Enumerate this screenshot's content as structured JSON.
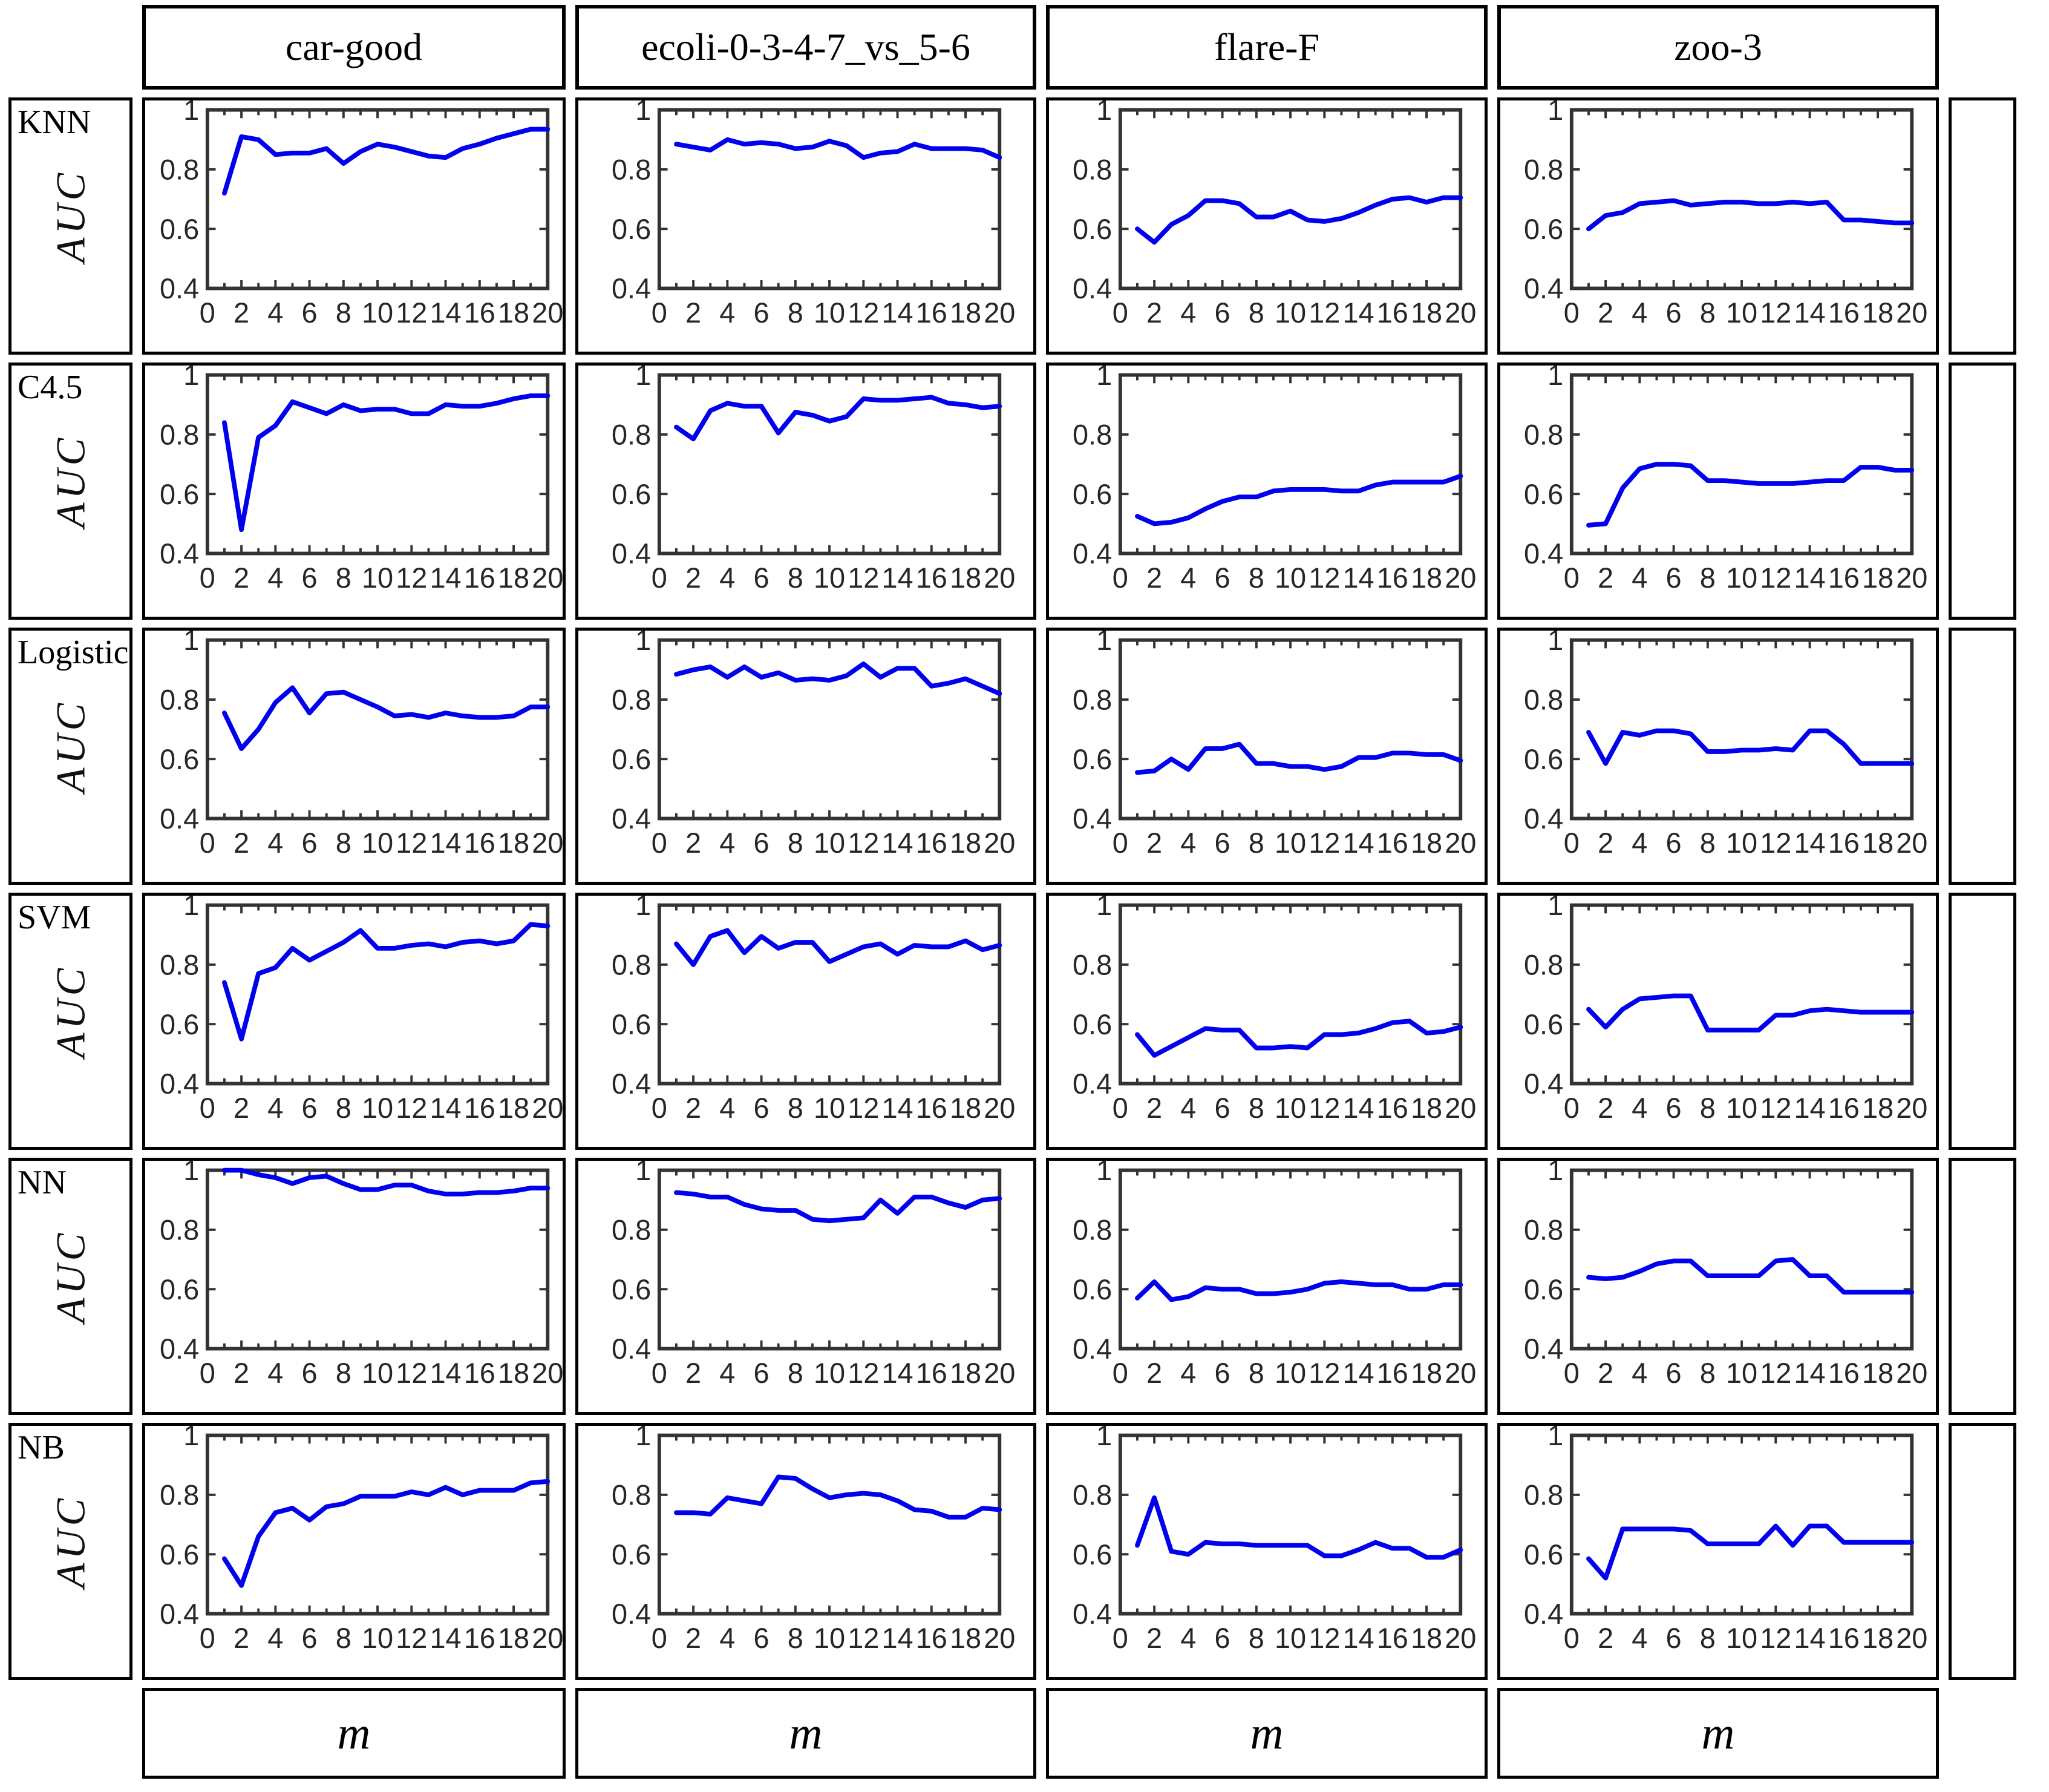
{
  "figure": {
    "ylabel": "AUC",
    "xlabel": "m",
    "row_labels": [
      "KNN",
      "C4.5",
      "Logistic",
      "SVM",
      "NN",
      "NB"
    ],
    "dataset_titles": [
      "car-good",
      "ecoli-0-3-4-7_vs_5-6",
      "flare-F",
      "zoo-3"
    ],
    "line_color": "#0000ee",
    "axis_color": "#333333",
    "tick_label_color": "#262626"
  },
  "chart_data": {
    "type": "line",
    "x": [
      1,
      2,
      3,
      4,
      5,
      6,
      7,
      8,
      9,
      10,
      11,
      12,
      13,
      14,
      15,
      16,
      17,
      18,
      19,
      20
    ],
    "xlim": [
      0,
      20
    ],
    "ylim": [
      0.4,
      1.0
    ],
    "xticks_labeled": [
      0,
      2,
      4,
      6,
      8,
      10,
      12,
      14,
      16,
      18,
      20
    ],
    "yticks_labeled": [
      0.4,
      0.6,
      0.8,
      1
    ],
    "grid": false,
    "legend": false,
    "series": [
      {
        "classifier": "KNN",
        "dataset": "car-good",
        "values": [
          0.72,
          0.91,
          0.9,
          0.85,
          0.855,
          0.855,
          0.87,
          0.82,
          0.86,
          0.885,
          0.875,
          0.86,
          0.845,
          0.84,
          0.87,
          0.885,
          0.905,
          0.92,
          0.935,
          0.935
        ]
      },
      {
        "classifier": "KNN",
        "dataset": "ecoli-0-3-4-7_vs_5-6",
        "values": [
          0.885,
          0.875,
          0.865,
          0.9,
          0.885,
          0.89,
          0.885,
          0.87,
          0.875,
          0.895,
          0.88,
          0.84,
          0.855,
          0.86,
          0.885,
          0.87,
          0.87,
          0.87,
          0.865,
          0.84
        ]
      },
      {
        "classifier": "KNN",
        "dataset": "flare-F",
        "values": [
          0.6,
          0.555,
          0.615,
          0.645,
          0.695,
          0.695,
          0.685,
          0.64,
          0.64,
          0.66,
          0.63,
          0.625,
          0.635,
          0.655,
          0.68,
          0.7,
          0.705,
          0.69,
          0.705,
          0.705
        ]
      },
      {
        "classifier": "KNN",
        "dataset": "zoo-3",
        "values": [
          0.6,
          0.645,
          0.655,
          0.685,
          0.69,
          0.695,
          0.68,
          0.685,
          0.69,
          0.69,
          0.685,
          0.685,
          0.69,
          0.685,
          0.69,
          0.63,
          0.63,
          0.625,
          0.62,
          0.62
        ]
      },
      {
        "classifier": "C4.5",
        "dataset": "car-good",
        "values": [
          0.84,
          0.48,
          0.79,
          0.83,
          0.91,
          0.89,
          0.87,
          0.9,
          0.88,
          0.885,
          0.885,
          0.87,
          0.87,
          0.9,
          0.895,
          0.895,
          0.905,
          0.92,
          0.93,
          0.93
        ]
      },
      {
        "classifier": "C4.5",
        "dataset": "ecoli-0-3-4-7_vs_5-6",
        "values": [
          0.825,
          0.785,
          0.88,
          0.905,
          0.895,
          0.895,
          0.805,
          0.875,
          0.865,
          0.845,
          0.86,
          0.92,
          0.915,
          0.915,
          0.92,
          0.925,
          0.905,
          0.9,
          0.89,
          0.895
        ]
      },
      {
        "classifier": "C4.5",
        "dataset": "flare-F",
        "values": [
          0.525,
          0.5,
          0.505,
          0.52,
          0.55,
          0.575,
          0.59,
          0.59,
          0.61,
          0.615,
          0.615,
          0.615,
          0.61,
          0.61,
          0.63,
          0.64,
          0.64,
          0.64,
          0.64,
          0.66
        ]
      },
      {
        "classifier": "C4.5",
        "dataset": "zoo-3",
        "values": [
          0.495,
          0.5,
          0.62,
          0.685,
          0.7,
          0.7,
          0.695,
          0.645,
          0.645,
          0.64,
          0.635,
          0.635,
          0.635,
          0.64,
          0.645,
          0.645,
          0.69,
          0.69,
          0.68,
          0.68
        ]
      },
      {
        "classifier": "Logistic",
        "dataset": "car-good",
        "values": [
          0.755,
          0.635,
          0.7,
          0.79,
          0.84,
          0.755,
          0.82,
          0.825,
          0.8,
          0.775,
          0.745,
          0.75,
          0.74,
          0.755,
          0.745,
          0.74,
          0.74,
          0.745,
          0.775,
          0.775
        ]
      },
      {
        "classifier": "Logistic",
        "dataset": "ecoli-0-3-4-7_vs_5-6",
        "values": [
          0.885,
          0.9,
          0.91,
          0.875,
          0.91,
          0.875,
          0.89,
          0.865,
          0.87,
          0.865,
          0.88,
          0.92,
          0.875,
          0.905,
          0.905,
          0.845,
          0.855,
          0.87,
          0.845,
          0.82
        ]
      },
      {
        "classifier": "Logistic",
        "dataset": "flare-F",
        "values": [
          0.555,
          0.56,
          0.6,
          0.565,
          0.635,
          0.635,
          0.65,
          0.585,
          0.585,
          0.575,
          0.575,
          0.565,
          0.575,
          0.605,
          0.605,
          0.62,
          0.62,
          0.615,
          0.615,
          0.595
        ]
      },
      {
        "classifier": "Logistic",
        "dataset": "zoo-3",
        "values": [
          0.69,
          0.585,
          0.69,
          0.68,
          0.695,
          0.695,
          0.685,
          0.625,
          0.625,
          0.63,
          0.63,
          0.635,
          0.63,
          0.695,
          0.695,
          0.65,
          0.585,
          0.585,
          0.585,
          0.585
        ]
      },
      {
        "classifier": "SVM",
        "dataset": "car-good",
        "values": [
          0.74,
          0.55,
          0.77,
          0.79,
          0.855,
          0.815,
          0.845,
          0.875,
          0.915,
          0.855,
          0.855,
          0.865,
          0.87,
          0.86,
          0.875,
          0.88,
          0.87,
          0.88,
          0.935,
          0.93
        ]
      },
      {
        "classifier": "SVM",
        "dataset": "ecoli-0-3-4-7_vs_5-6",
        "values": [
          0.87,
          0.8,
          0.895,
          0.915,
          0.84,
          0.895,
          0.855,
          0.875,
          0.875,
          0.81,
          0.835,
          0.86,
          0.87,
          0.835,
          0.865,
          0.86,
          0.86,
          0.88,
          0.85,
          0.865
        ]
      },
      {
        "classifier": "SVM",
        "dataset": "flare-F",
        "values": [
          0.565,
          0.495,
          0.525,
          0.555,
          0.585,
          0.58,
          0.58,
          0.52,
          0.52,
          0.525,
          0.52,
          0.565,
          0.565,
          0.57,
          0.585,
          0.605,
          0.61,
          0.57,
          0.575,
          0.59
        ]
      },
      {
        "classifier": "SVM",
        "dataset": "zoo-3",
        "values": [
          0.65,
          0.59,
          0.65,
          0.685,
          0.69,
          0.695,
          0.695,
          0.58,
          0.58,
          0.58,
          0.58,
          0.63,
          0.63,
          0.645,
          0.65,
          0.645,
          0.64,
          0.64,
          0.64,
          0.64
        ]
      },
      {
        "classifier": "NN",
        "dataset": "car-good",
        "values": [
          1.0,
          1.0,
          0.985,
          0.975,
          0.955,
          0.975,
          0.98,
          0.955,
          0.935,
          0.935,
          0.95,
          0.95,
          0.93,
          0.92,
          0.92,
          0.925,
          0.925,
          0.93,
          0.94,
          0.94
        ]
      },
      {
        "classifier": "NN",
        "dataset": "ecoli-0-3-4-7_vs_5-6",
        "values": [
          0.925,
          0.92,
          0.91,
          0.91,
          0.885,
          0.87,
          0.865,
          0.865,
          0.835,
          0.83,
          0.835,
          0.84,
          0.9,
          0.855,
          0.91,
          0.91,
          0.89,
          0.875,
          0.9,
          0.905
        ]
      },
      {
        "classifier": "NN",
        "dataset": "flare-F",
        "values": [
          0.57,
          0.625,
          0.565,
          0.575,
          0.605,
          0.6,
          0.6,
          0.585,
          0.585,
          0.59,
          0.6,
          0.62,
          0.625,
          0.62,
          0.615,
          0.615,
          0.6,
          0.6,
          0.615,
          0.615
        ]
      },
      {
        "classifier": "NN",
        "dataset": "zoo-3",
        "values": [
          0.64,
          0.635,
          0.64,
          0.66,
          0.685,
          0.695,
          0.695,
          0.645,
          0.645,
          0.645,
          0.645,
          0.695,
          0.7,
          0.645,
          0.645,
          0.59,
          0.59,
          0.59,
          0.59,
          0.59
        ]
      },
      {
        "classifier": "NB",
        "dataset": "car-good",
        "values": [
          0.585,
          0.495,
          0.66,
          0.74,
          0.755,
          0.715,
          0.76,
          0.77,
          0.795,
          0.795,
          0.795,
          0.81,
          0.8,
          0.825,
          0.8,
          0.815,
          0.815,
          0.815,
          0.84,
          0.845
        ]
      },
      {
        "classifier": "NB",
        "dataset": "ecoli-0-3-4-7_vs_5-6",
        "values": [
          0.74,
          0.74,
          0.735,
          0.79,
          0.78,
          0.77,
          0.86,
          0.855,
          0.82,
          0.79,
          0.8,
          0.805,
          0.8,
          0.78,
          0.75,
          0.745,
          0.725,
          0.725,
          0.755,
          0.75
        ]
      },
      {
        "classifier": "NB",
        "dataset": "flare-F",
        "values": [
          0.63,
          0.79,
          0.61,
          0.6,
          0.64,
          0.635,
          0.635,
          0.63,
          0.63,
          0.63,
          0.63,
          0.595,
          0.595,
          0.615,
          0.64,
          0.62,
          0.62,
          0.59,
          0.59,
          0.615
        ]
      },
      {
        "classifier": "NB",
        "dataset": "zoo-3",
        "values": [
          0.585,
          0.52,
          0.685,
          0.685,
          0.685,
          0.685,
          0.68,
          0.635,
          0.635,
          0.635,
          0.635,
          0.695,
          0.63,
          0.695,
          0.695,
          0.64,
          0.64,
          0.64,
          0.64,
          0.64
        ]
      }
    ]
  }
}
